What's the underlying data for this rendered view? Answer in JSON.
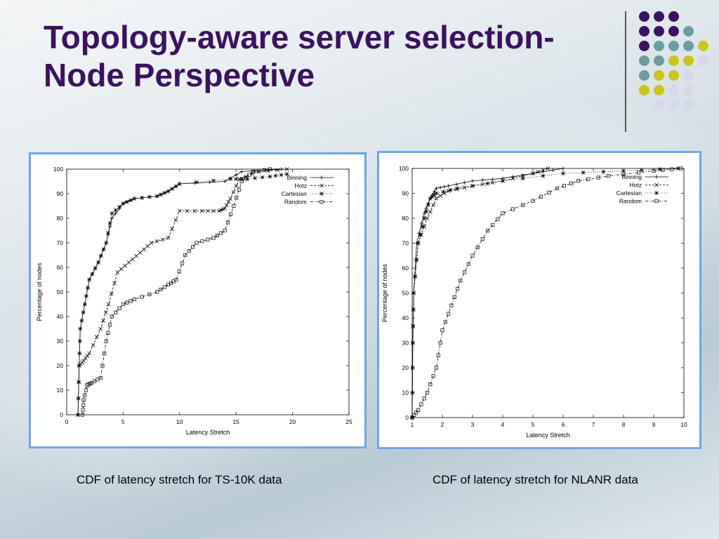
{
  "slide": {
    "title": "Topology-aware server selection-Node Perspective",
    "colors": {
      "title": "#3b1260",
      "dot_purple": "#3b1260",
      "dot_teal": "#6a9ea0",
      "dot_yellow": "#c9c619",
      "dot_lavender": "#d8d8ec",
      "frame": "#6fa6e6"
    },
    "dot_grid": [
      [
        "purple",
        "purple",
        "purple",
        "none"
      ],
      [
        "purple",
        "purple",
        "purple",
        "teal"
      ],
      [
        "purple",
        "teal",
        "teal",
        "teal",
        "yellow"
      ],
      [
        "teal",
        "teal",
        "yellow",
        "yellow",
        "lavender"
      ],
      [
        "teal",
        "yellow",
        "yellow",
        "lavender"
      ],
      [
        "yellow",
        "yellow",
        "lavender",
        "lavender"
      ],
      [
        "none",
        "lavender",
        "lavender",
        "lavender"
      ]
    ]
  },
  "captions": {
    "left": "CDF of latency stretch for TS-10K data",
    "right": "CDF of latency stretch for NLANR data"
  },
  "chart_data": [
    {
      "type": "line",
      "xlabel": "Latency Stretch",
      "ylabel": "Percentage of nodes",
      "xlim": [
        0,
        25
      ],
      "ylim": [
        0,
        100
      ],
      "xticks": [
        0,
        5,
        10,
        15,
        20,
        25
      ],
      "yticks": [
        0,
        10,
        20,
        30,
        40,
        50,
        60,
        70,
        80,
        90,
        100
      ],
      "legend_position": "top-right",
      "series": [
        {
          "name": "Binning",
          "marker": "+",
          "points": [
            [
              1,
              0
            ],
            [
              1.1,
              20
            ],
            [
              1.2,
              35
            ],
            [
              1.6,
              45
            ],
            [
              2,
              55
            ],
            [
              2.8,
              62
            ],
            [
              3.5,
              70
            ],
            [
              4,
              80
            ],
            [
              5,
              86
            ],
            [
              6,
              88
            ],
            [
              8,
              89
            ],
            [
              9,
              91
            ],
            [
              10,
              94
            ],
            [
              14,
              95
            ],
            [
              15.5,
              99
            ],
            [
              19,
              100
            ]
          ]
        },
        {
          "name": "Hotz",
          "marker": "x",
          "points": [
            [
              1,
              0
            ],
            [
              1.1,
              20
            ],
            [
              1.5,
              22
            ],
            [
              2,
              25
            ],
            [
              3,
              35
            ],
            [
              3.7,
              45
            ],
            [
              4.5,
              58
            ],
            [
              5.5,
              62
            ],
            [
              6.5,
              66
            ],
            [
              7.5,
              70
            ],
            [
              9,
              72
            ],
            [
              10,
              83
            ],
            [
              12,
              83
            ],
            [
              13.5,
              83
            ],
            [
              14,
              84
            ],
            [
              14.5,
              88
            ],
            [
              15.3,
              96
            ],
            [
              17,
              99
            ],
            [
              19.5,
              100
            ]
          ]
        },
        {
          "name": "Cartesian",
          "marker": "*",
          "points": [
            [
              1,
              0
            ],
            [
              1.1,
              20
            ],
            [
              1.2,
              35
            ],
            [
              1.6,
              45
            ],
            [
              2,
              55
            ],
            [
              2.8,
              62
            ],
            [
              3.5,
              70
            ],
            [
              4,
              82
            ],
            [
              5,
              86
            ],
            [
              6,
              88
            ],
            [
              8,
              89
            ],
            [
              9,
              91
            ],
            [
              10,
              94
            ],
            [
              14.5,
              96
            ],
            [
              16,
              96
            ],
            [
              18,
              97
            ],
            [
              19.5,
              98
            ]
          ]
        },
        {
          "name": "Random",
          "marker": "square",
          "points": [
            [
              1.4,
              0
            ],
            [
              1.5,
              6
            ],
            [
              1.8,
              12
            ],
            [
              2.2,
              13
            ],
            [
              3,
              15
            ],
            [
              3.5,
              30
            ],
            [
              4,
              40
            ],
            [
              5,
              45
            ],
            [
              6,
              47
            ],
            [
              8,
              50
            ],
            [
              9,
              53
            ],
            [
              9.7,
              55
            ],
            [
              10.5,
              65
            ],
            [
              11.5,
              70
            ],
            [
              13,
              72
            ],
            [
              14,
              75
            ],
            [
              14.8,
              85
            ],
            [
              15.5,
              95
            ],
            [
              16.5,
              99
            ],
            [
              18,
              100
            ]
          ]
        }
      ]
    },
    {
      "type": "line",
      "xlabel": "Latency Stretch",
      "ylabel": "Percentage of nodes",
      "xlim": [
        1,
        10
      ],
      "ylim": [
        0,
        100
      ],
      "xticks": [
        1,
        2,
        3,
        4,
        5,
        6,
        7,
        8,
        9,
        10
      ],
      "yticks": [
        0,
        10,
        20,
        30,
        40,
        50,
        60,
        70,
        80,
        90,
        100
      ],
      "legend_position": "top-right",
      "series": [
        {
          "name": "Binning",
          "marker": "+",
          "points": [
            [
              1,
              0
            ],
            [
              1.02,
              30
            ],
            [
              1.05,
              50
            ],
            [
              1.15,
              70
            ],
            [
              1.4,
              82
            ],
            [
              1.6,
              88
            ],
            [
              1.8,
              92
            ],
            [
              2.2,
              93
            ],
            [
              3,
              95
            ],
            [
              4,
              96
            ],
            [
              5,
              98
            ],
            [
              6,
              100
            ]
          ]
        },
        {
          "name": "Hotz",
          "marker": "x",
          "points": [
            [
              1,
              0
            ],
            [
              1.02,
              30
            ],
            [
              1.05,
              50
            ],
            [
              1.2,
              70
            ],
            [
              1.5,
              80
            ],
            [
              1.8,
              88
            ],
            [
              2.2,
              91
            ],
            [
              3,
              93
            ],
            [
              4,
              95
            ],
            [
              5,
              98
            ],
            [
              5.5,
              100
            ]
          ]
        },
        {
          "name": "Cartesian",
          "marker": "*",
          "points": [
            [
              1,
              0
            ],
            [
              1.02,
              30
            ],
            [
              1.05,
              50
            ],
            [
              1.2,
              70
            ],
            [
              1.4,
              80
            ],
            [
              1.6,
              88
            ],
            [
              1.8,
              90
            ],
            [
              2.5,
              92
            ],
            [
              4,
              95
            ],
            [
              6,
              98
            ],
            [
              8,
              99
            ],
            [
              9.8,
              100
            ]
          ]
        },
        {
          "name": "Random",
          "marker": "square",
          "points": [
            [
              1,
              0
            ],
            [
              1.2,
              3
            ],
            [
              1.5,
              10
            ],
            [
              1.8,
              20
            ],
            [
              2,
              35
            ],
            [
              2.3,
              45
            ],
            [
              2.6,
              55
            ],
            [
              3,
              65
            ],
            [
              3.5,
              75
            ],
            [
              4,
              82
            ],
            [
              5,
              87
            ],
            [
              5.8,
              92
            ],
            [
              6.5,
              95
            ],
            [
              7.5,
              97
            ],
            [
              9,
              99
            ],
            [
              9.9,
              100
            ]
          ]
        }
      ]
    }
  ]
}
